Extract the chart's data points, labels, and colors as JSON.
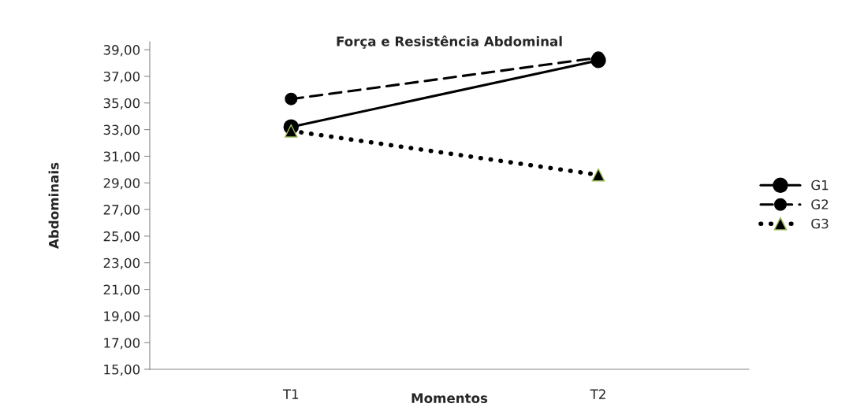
{
  "chart_data": {
    "type": "line",
    "title": "Força e Resistência Abdominal",
    "xlabel": "Momentos",
    "ylabel": "Abdominais",
    "categories": [
      "T1",
      "T2"
    ],
    "series": [
      {
        "name": "G1",
        "color": "#000000",
        "values": [
          33.2,
          38.2
        ],
        "marker": "circle",
        "line_style": "solid"
      },
      {
        "name": "G2",
        "color": "#000000",
        "values": [
          35.3,
          38.4
        ],
        "marker": "circle",
        "line_style": "dashed"
      },
      {
        "name": "G3",
        "color": "#000000",
        "values": [
          32.9,
          29.6
        ],
        "marker": "triangle",
        "line_style": "dotted"
      }
    ],
    "ylim": [
      15,
      39.6
    ],
    "yticks": [
      {
        "value": 15,
        "label": "15,00"
      },
      {
        "value": 17,
        "label": "17,00"
      },
      {
        "value": 19,
        "label": "19,00"
      },
      {
        "value": 21,
        "label": "21,00"
      },
      {
        "value": 23,
        "label": "23,00"
      },
      {
        "value": 25,
        "label": "25,00"
      },
      {
        "value": 27,
        "label": "27,00"
      },
      {
        "value": 29,
        "label": "29,00"
      },
      {
        "value": 31,
        "label": "31,00"
      },
      {
        "value": 33,
        "label": "33,00"
      },
      {
        "value": 35,
        "label": "35,00"
      },
      {
        "value": 37,
        "label": "37,00"
      },
      {
        "value": 39,
        "label": "39,00"
      }
    ],
    "grid": false,
    "legend": "right"
  }
}
